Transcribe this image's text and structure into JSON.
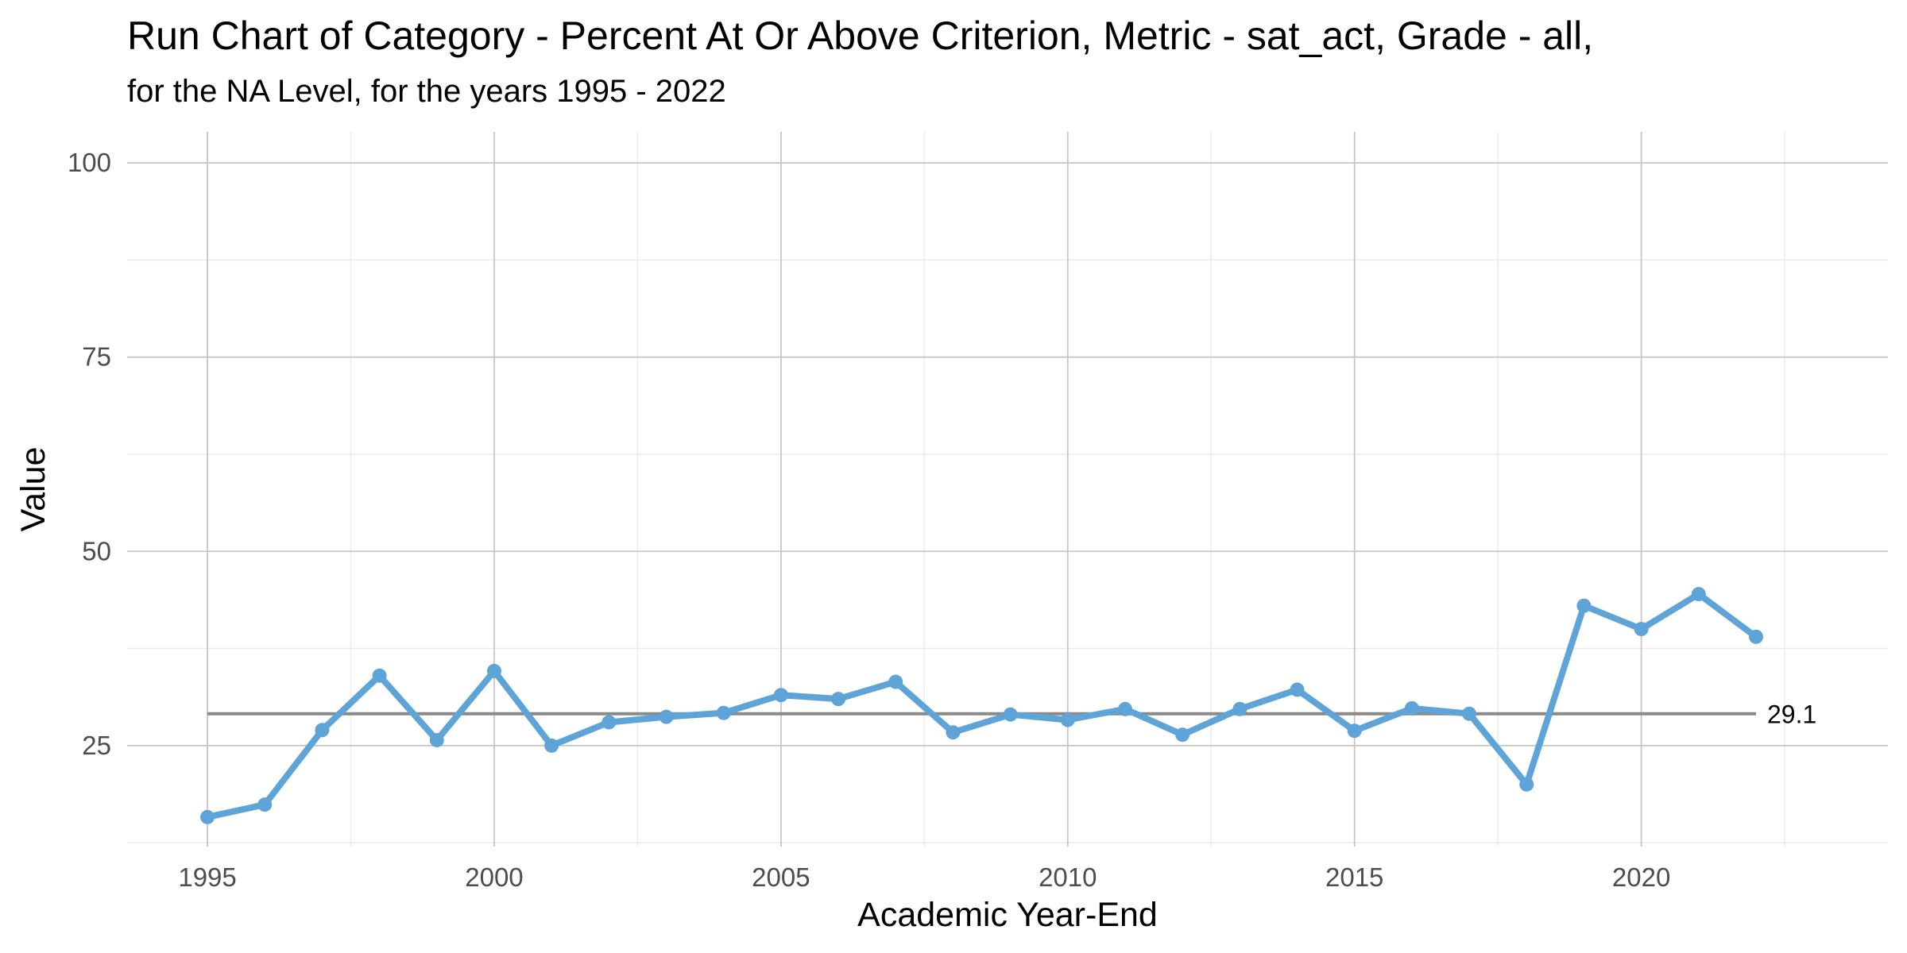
{
  "chart_data": {
    "type": "line",
    "title": "Run Chart of Category - Percent At Or Above Criterion, Metric - sat_act, Grade - all,",
    "subtitle": "for the NA Level, for the years 1995 - 2022",
    "xlabel": "Academic Year-End",
    "ylabel": "Value",
    "xlim": [
      1993.6,
      2024.3
    ],
    "ylim": [
      12,
      104
    ],
    "x_ticks": [
      1995,
      2000,
      2005,
      2010,
      2015,
      2020
    ],
    "y_ticks": [
      25,
      50,
      75,
      100
    ],
    "grid": true,
    "line_color": "#5fa4d9",
    "reference_line": {
      "value": 29.1,
      "label": "29.1",
      "x_range": [
        1995,
        2022
      ],
      "color": "#8a8a8a"
    },
    "series": [
      {
        "x": [
          1995,
          1996,
          1997,
          1998,
          1999,
          2000,
          2001,
          2002,
          2003,
          2004,
          2005,
          2006,
          2007,
          2008,
          2009,
          2010,
          2011,
          2012,
          2013,
          2014,
          2015,
          2016,
          2017,
          2018,
          2019,
          2020,
          2021,
          2022
        ],
        "values": [
          15.8,
          17.4,
          27.0,
          34.0,
          25.7,
          34.6,
          25.0,
          28.0,
          28.7,
          29.2,
          31.5,
          31.0,
          33.2,
          26.7,
          29.0,
          28.3,
          29.7,
          26.4,
          29.7,
          32.2,
          26.9,
          29.8,
          29.1,
          20.0,
          43.0,
          40.0,
          44.5,
          39.0
        ]
      }
    ]
  }
}
